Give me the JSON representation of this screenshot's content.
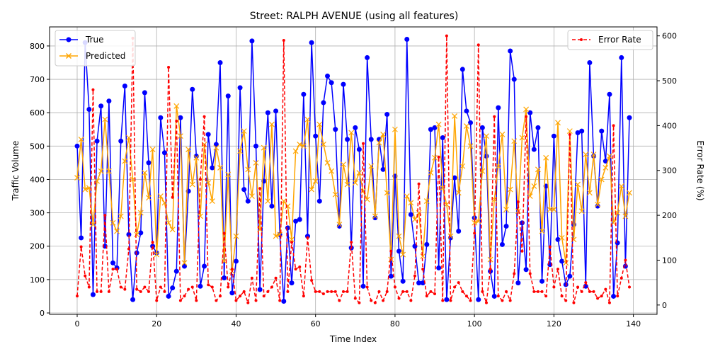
{
  "chart_data": {
    "type": "line",
    "title": "Street: RALPH AVENUE (using all features)",
    "xlabel": "Time Index",
    "ylabel": "Traffic Volume",
    "y2label": "Error Rate (%)",
    "xlim": [
      -6.95,
      145.95
    ],
    "ylim": [
      -4.2,
      857.1
    ],
    "y2lim": [
      -20.8,
      620
    ],
    "xticks": [
      0,
      20,
      40,
      60,
      80,
      100,
      120,
      140
    ],
    "yticks": [
      0,
      100,
      200,
      300,
      400,
      500,
      600,
      700,
      800
    ],
    "y2ticks": [
      0,
      100,
      200,
      300,
      400,
      500,
      600
    ],
    "grid": true,
    "legend_left": "upper-left",
    "legend_right": "upper-right",
    "x": [
      0,
      1,
      2,
      3,
      4,
      5,
      6,
      7,
      8,
      9,
      10,
      11,
      12,
      13,
      14,
      15,
      16,
      17,
      18,
      19,
      20,
      21,
      22,
      23,
      24,
      25,
      26,
      27,
      28,
      29,
      30,
      31,
      32,
      33,
      34,
      35,
      36,
      37,
      38,
      39,
      40,
      41,
      42,
      43,
      44,
      45,
      46,
      47,
      48,
      49,
      50,
      51,
      52,
      53,
      54,
      55,
      56,
      57,
      58,
      59,
      60,
      61,
      62,
      63,
      64,
      65,
      66,
      67,
      68,
      69,
      70,
      71,
      72,
      73,
      74,
      75,
      76,
      77,
      78,
      79,
      80,
      81,
      82,
      83,
      84,
      85,
      86,
      87,
      88,
      89,
      90,
      91,
      92,
      93,
      94,
      95,
      96,
      97,
      98,
      99,
      100,
      101,
      102,
      103,
      104,
      105,
      106,
      107,
      108,
      109,
      110,
      111,
      112,
      113,
      114,
      115,
      116,
      117,
      118,
      119,
      120,
      121,
      122,
      123,
      124,
      125,
      126,
      127,
      128,
      129,
      130,
      131,
      132,
      133,
      134,
      135,
      136,
      137,
      138,
      139
    ],
    "series": [
      {
        "name": "True",
        "axis": "left",
        "color": "#0000ff",
        "marker": "circle",
        "values": [
          500,
          225,
          810,
          610,
          55,
          515,
          620,
          200,
          635,
          150,
          135,
          515,
          680,
          235,
          40,
          180,
          240,
          660,
          450,
          200,
          180,
          585,
          480,
          50,
          75,
          125,
          585,
          140,
          365,
          670,
          470,
          80,
          140,
          535,
          435,
          505,
          750,
          105,
          650,
          60,
          155,
          675,
          370,
          335,
          815,
          500,
          70,
          395,
          600,
          320,
          605,
          235,
          35,
          255,
          90,
          275,
          280,
          655,
          230,
          810,
          530,
          335,
          630,
          710,
          690,
          550,
          260,
          685,
          520,
          195,
          555,
          490,
          80,
          765,
          520,
          285,
          520,
          430,
          595,
          110,
          410,
          185,
          95,
          820,
          295,
          200,
          90,
          90,
          205,
          550,
          555,
          135,
          525,
          40,
          225,
          405,
          245,
          730,
          605,
          570,
          285,
          40,
          555,
          470,
          125,
          50,
          615,
          205,
          260,
          785,
          700,
          90,
          270,
          130,
          600,
          490,
          555,
          95,
          380,
          145,
          530,
          220,
          155,
          85,
          110,
          265,
          540,
          545,
          80,
          750,
          470,
          320,
          545,
          455,
          655,
          50,
          210,
          765,
          140,
          585
        ]
      },
      {
        "name": "Predicted",
        "axis": "left",
        "color": "#ffa500",
        "marker": "x",
        "values": [
          405,
          520,
          370,
          375,
          265,
          395,
          425,
          580,
          425,
          270,
          245,
          290,
          455,
          525,
          400,
          235,
          300,
          420,
          345,
          490,
          175,
          350,
          330,
          270,
          250,
          620,
          530,
          150,
          490,
          385,
          465,
          290,
          505,
          390,
          335,
          495,
          435,
          155,
          415,
          125,
          230,
          485,
          545,
          430,
          350,
          450,
          250,
          495,
          335,
          565,
          230,
          235,
          335,
          320,
          220,
          485,
          505,
          500,
          580,
          370,
          395,
          565,
          505,
          450,
          425,
          355,
          265,
          445,
          385,
          540,
          390,
          420,
          365,
          340,
          440,
          290,
          510,
          535,
          360,
          160,
          550,
          230,
          175,
          350,
          330,
          280,
          300,
          170,
          335,
          420,
          465,
          565,
          375,
          325,
          230,
          590,
          360,
          440,
          560,
          500,
          270,
          275,
          425,
          530,
          160,
          340,
          440,
          535,
          310,
          370,
          515,
          305,
          525,
          610,
          350,
          380,
          430,
          245,
          465,
          310,
          310,
          570,
          225,
          150,
          545,
          220,
          385,
          305,
          475,
          360,
          475,
          325,
          400,
          435,
          470,
          270,
          300,
          380,
          290,
          360
        ]
      },
      {
        "name": "Error Rate",
        "axis": "right",
        "color": "#ff0000",
        "marker": "dot",
        "dashed": true,
        "values": [
          20,
          130,
          65,
          40,
          480,
          30,
          30,
          200,
          30,
          80,
          80,
          40,
          35,
          125,
          595,
          35,
          30,
          40,
          30,
          140,
          10,
          40,
          30,
          530,
          240,
          410,
          10,
          20,
          35,
          40,
          10,
          280,
          420,
          45,
          40,
          10,
          20,
          160,
          40,
          80,
          10,
          20,
          30,
          5,
          60,
          10,
          260,
          20,
          30,
          40,
          60,
          10,
          590,
          30,
          140,
          80,
          85,
          20,
          150,
          55,
          30,
          30,
          25,
          30,
          30,
          30,
          10,
          30,
          30,
          140,
          15,
          5,
          360,
          40,
          10,
          5,
          30,
          10,
          30,
          120,
          40,
          15,
          30,
          30,
          10,
          65,
          270,
          80,
          20,
          30,
          25,
          330,
          10,
          600,
          10,
          40,
          50,
          30,
          20,
          10,
          160,
          580,
          30,
          5,
          80,
          420,
          20,
          10,
          30,
          10,
          70,
          230,
          120,
          420,
          70,
          30,
          30,
          30,
          20,
          130,
          40,
          80,
          20,
          10,
          380,
          5,
          40,
          30,
          50,
          30,
          30,
          15,
          20,
          35,
          5,
          400,
          20,
          60,
          100,
          40
        ]
      }
    ]
  }
}
